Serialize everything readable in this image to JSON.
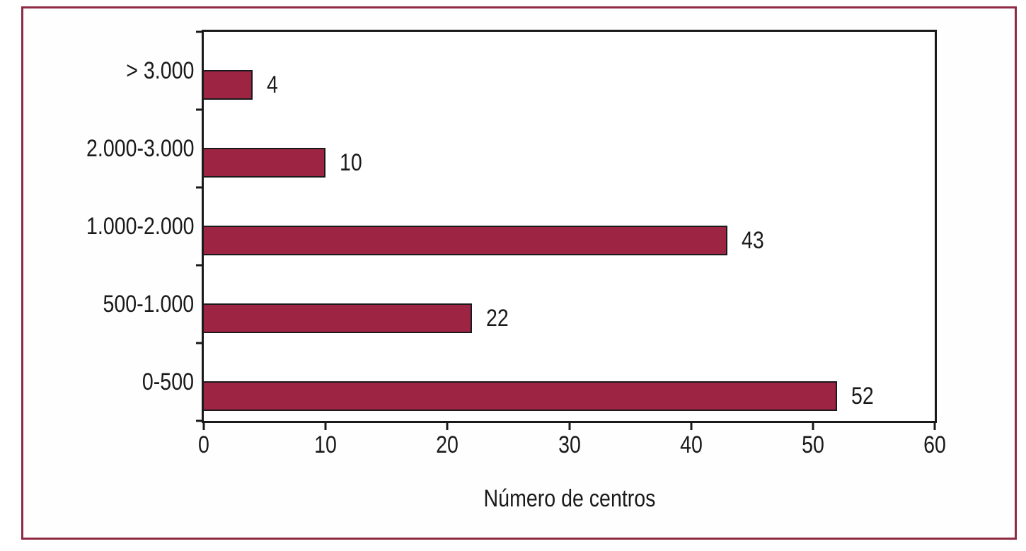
{
  "chart_data": {
    "type": "bar",
    "orientation": "horizontal",
    "categories": [
      "> 3.000",
      "2.000-3.000",
      "1.000-2.000",
      "500-1.000",
      "0-500"
    ],
    "values": [
      4,
      10,
      43,
      22,
      52
    ],
    "value_labels": [
      "4",
      "10",
      "43",
      "22",
      "52"
    ],
    "title": "",
    "xlabel": "Número de centros",
    "ylabel": "",
    "xlim": [
      0,
      60
    ],
    "xticks": [
      0,
      10,
      20,
      30,
      40,
      50,
      60
    ],
    "xtick_labels": [
      "0",
      "10",
      "20",
      "30",
      "40",
      "50",
      "60"
    ],
    "grid": false,
    "legend": "none",
    "bar_color": "#9e2444",
    "bar_border_color": "#1a1a1a",
    "axis_color": "#1a1a1a",
    "frame_border_color": "#8e2a43",
    "text_color": "#1a1a1a",
    "background_color": "#ffffff"
  }
}
